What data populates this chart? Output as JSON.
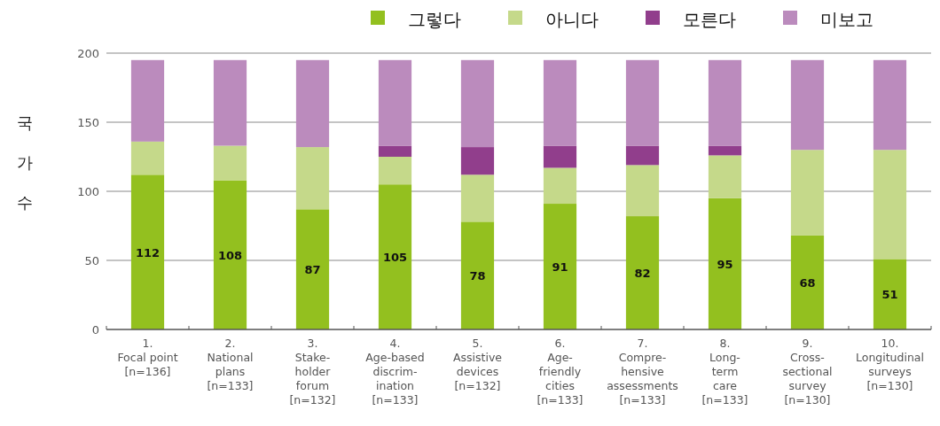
{
  "chart_data": {
    "type": "bar",
    "stacked": true,
    "ylabel": "국가수",
    "categories": [
      "1.\nFocal point\n[n=136]",
      "2.\nNational\nplans\n[n=133]",
      "3.\nStake-\nholder\nforum\n[n=132]",
      "4.\nAge-based\ndiscrim-\nination\n[n=133]",
      "5.\nAssistive\ndevices\n[n=132]",
      "6.\nAge-\nfriendly\ncities\n[n=133]",
      "7.\nCompre-\nhensive\nassessments\n[n=133]",
      "8.\nLong-\nterm\ncare\n[n=133]",
      "9.\nCross-\nsectional\nsurvey\n[n=130]",
      "10.\nLongitudinal\nsurveys\n[n=130]"
    ],
    "series": [
      {
        "name": "그렇다",
        "color": "#93c01f",
        "values": [
          112,
          108,
          87,
          105,
          78,
          91,
          82,
          95,
          68,
          51
        ],
        "value_labels": [
          "112",
          "108",
          "87",
          "105",
          "78",
          "91",
          "82",
          "95",
          "68",
          "51"
        ]
      },
      {
        "name": "아니다",
        "color": "#c5d98a",
        "values": [
          24,
          25,
          45,
          20,
          34,
          26,
          37,
          31,
          62,
          79
        ]
      },
      {
        "name": "모른다",
        "color": "#913e8c",
        "values": [
          0,
          0,
          0,
          8,
          20,
          16,
          14,
          7,
          0,
          0
        ]
      },
      {
        "name": "미보고",
        "color": "#bb8bbd",
        "values": [
          59,
          62,
          63,
          62,
          63,
          62,
          62,
          62,
          65,
          65
        ]
      }
    ],
    "ylim": [
      0,
      200
    ],
    "yticks": [
      0,
      50,
      100,
      150,
      200
    ],
    "grid": "y",
    "legend": "top right"
  }
}
